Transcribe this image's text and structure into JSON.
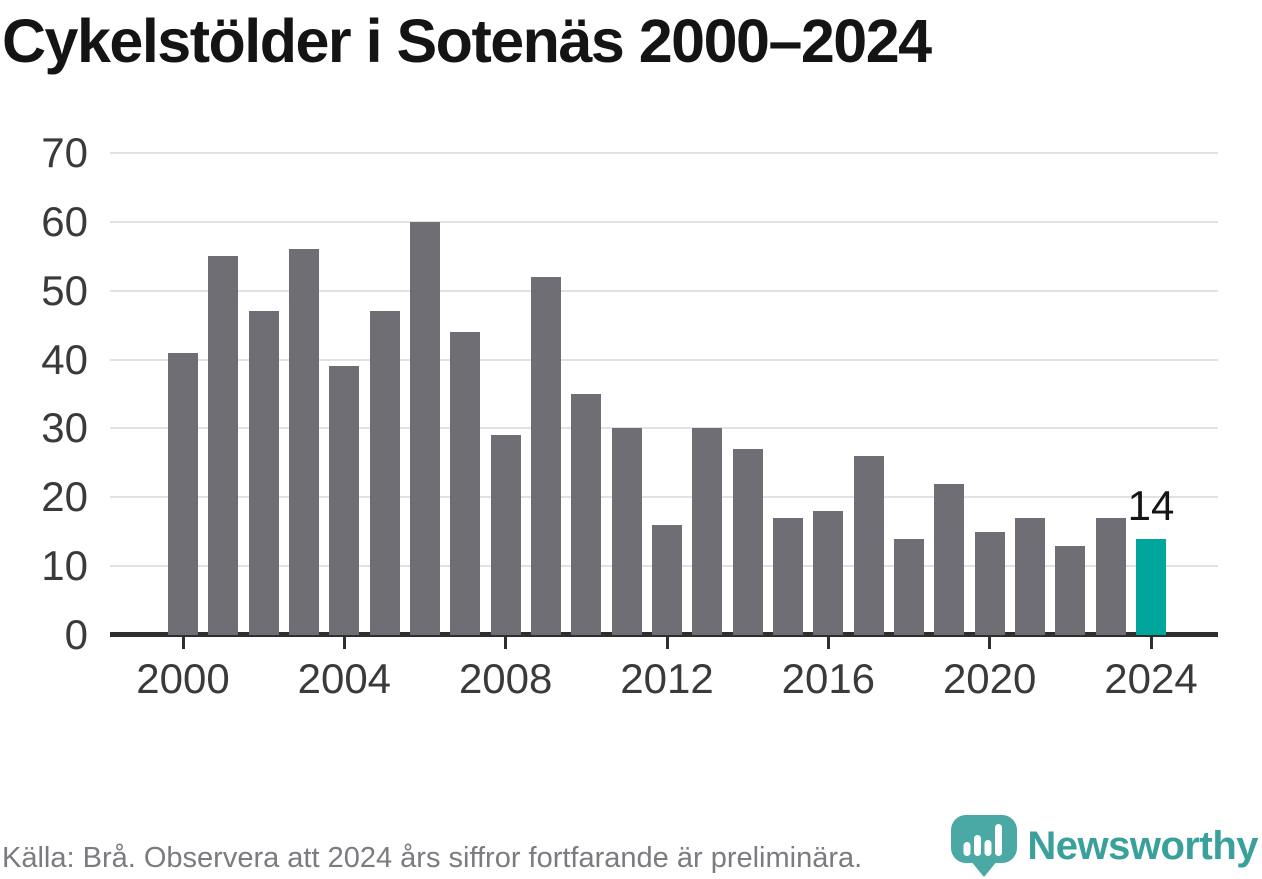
{
  "page": {
    "background": "#ffffff"
  },
  "chart_data": {
    "type": "bar",
    "title": "Cykelstölder i Sotenäs 2000–2024",
    "categories": [
      "2000",
      "2001",
      "2002",
      "2003",
      "2004",
      "2005",
      "2006",
      "2007",
      "2008",
      "2009",
      "2010",
      "2011",
      "2012",
      "2013",
      "2014",
      "2015",
      "2016",
      "2017",
      "2018",
      "2019",
      "2020",
      "2021",
      "2022",
      "2023",
      "2024"
    ],
    "values": [
      41,
      55,
      47,
      56,
      39,
      47,
      60,
      44,
      29,
      52,
      35,
      30,
      16,
      30,
      27,
      17,
      18,
      26,
      14,
      22,
      15,
      17,
      13,
      17,
      14
    ],
    "xlabel": "",
    "ylabel": "",
    "ylim": [
      0,
      70
    ],
    "yticks": [
      0,
      10,
      20,
      30,
      40,
      50,
      60,
      70
    ],
    "xtick_labels": [
      "2000",
      "2004",
      "2008",
      "2012",
      "2016",
      "2020",
      "2024"
    ],
    "grid": "horizontal",
    "legend": "none",
    "bar_color": "#6e6e74",
    "highlight": {
      "category": "2024",
      "color": "#00a59b",
      "label": "14"
    },
    "gridline_color": "#e2e2e2",
    "axis_color": "#2e2e2e",
    "tick_label_color": "#3a3a3a"
  },
  "footer": {
    "source_note": "Källa: Brå. Observera att 2024 års siffror fortfarande är preliminära.",
    "brand": "Newsworthy",
    "brand_color": "#3aa09b",
    "logo_icon": "bar-chart-map-pin-icon",
    "logo_icon_color": "#4aa9a4"
  }
}
